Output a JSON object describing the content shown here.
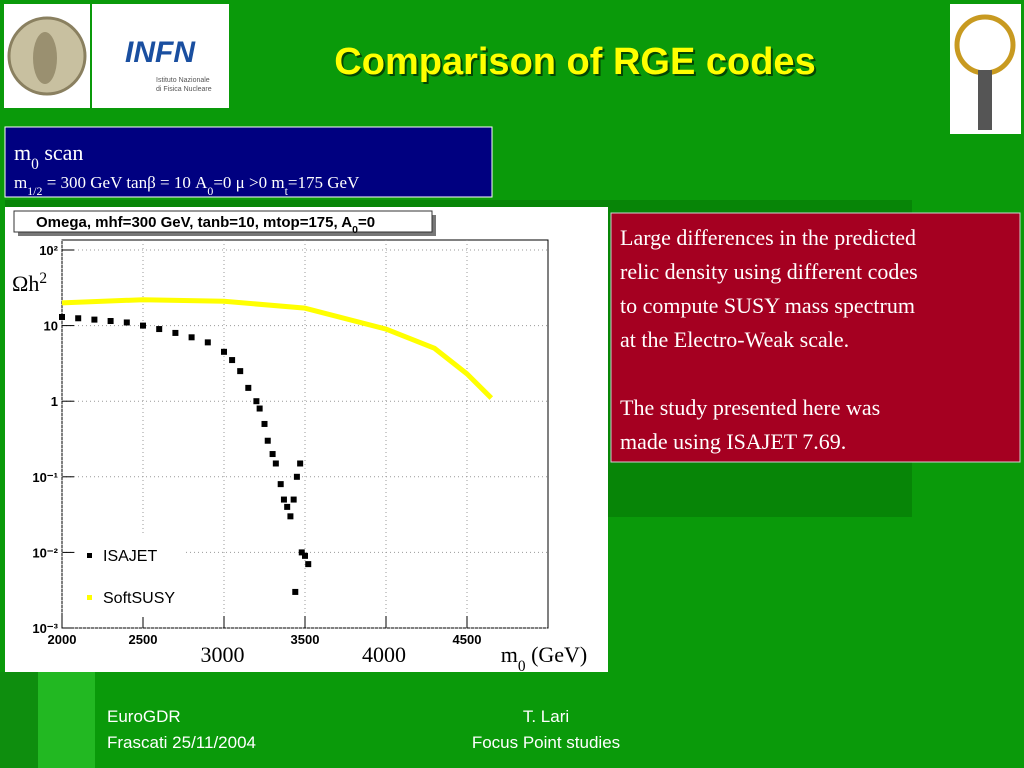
{
  "slide_title": "Comparison of RGE codes",
  "logos": {
    "infn": "INFN",
    "infn_sub": [
      "Istituto Nazionale",
      "di Fisica Nucleare"
    ]
  },
  "scan_box": {
    "heading": [
      "m",
      "0",
      " scan"
    ],
    "params": [
      "m",
      "1/2",
      " = 300 GeV tanβ = 10 A",
      "0",
      "=0 μ >0 m",
      "t",
      "=175 GeV"
    ]
  },
  "chart_data": {
    "type": "scatter",
    "title": [
      "Omega, mhf=300 GeV, tanb=10, mtop=175, A",
      "0",
      "=0"
    ],
    "y_label": [
      "Ωh",
      "2"
    ],
    "x_label": [
      "m",
      "0",
      " (GeV)"
    ],
    "x_label_overlays": [
      "3000",
      "4000"
    ],
    "xlim": [
      2000,
      5000
    ],
    "xticks": [
      2000,
      2500,
      3000,
      3500,
      4000,
      4500
    ],
    "ylim": [
      0.001,
      100
    ],
    "y_log": true,
    "yticks": [
      {
        "value": 100,
        "label": "10²"
      },
      10,
      1,
      {
        "value": 0.1,
        "label": "10⁻¹"
      },
      {
        "value": 0.01,
        "label": "10⁻²"
      },
      {
        "value": 0.001,
        "label": "10⁻³"
      }
    ],
    "grid": true,
    "series": [
      {
        "name": "ISAJET",
        "color": "#000000",
        "style": "markers",
        "x": [
          2000,
          2100,
          2200,
          2300,
          2400,
          2500,
          2600,
          2700,
          2800,
          2900,
          3000,
          3050,
          3100,
          3150,
          3200,
          3220,
          3250,
          3270,
          3300,
          3320,
          3350,
          3370,
          3390,
          3410,
          3430,
          3440,
          3450,
          3470,
          3480,
          3500,
          3520
        ],
        "values": [
          13,
          12.5,
          12,
          11.5,
          11,
          10,
          9,
          8,
          7,
          6,
          4.5,
          3.5,
          2.5,
          1.5,
          1,
          0.8,
          0.5,
          0.3,
          0.2,
          0.15,
          0.08,
          0.05,
          0.04,
          0.03,
          0.05,
          0.003,
          0.1,
          0.15,
          0.01,
          0.009,
          0.007
        ]
      },
      {
        "name": "SoftSUSY",
        "color": "#ffff00",
        "style": "line",
        "x": [
          2000,
          2500,
          3000,
          3500,
          4000,
          4300,
          4500,
          4650
        ],
        "values": [
          20,
          22,
          21,
          17,
          9,
          5,
          2.3,
          1.1
        ]
      }
    ]
  },
  "relic_text": [
    [
      "Large differences in the predicted",
      "relic density using different codes",
      "to compute SUSY mass spectrum",
      "at the Electro-Weak scale."
    ],
    [
      "The study presented here was",
      "made using ISAJET 7.69."
    ]
  ],
  "footer": {
    "left": [
      "EuroGDR",
      "Frascati 25/11/2004"
    ],
    "center": [
      "T. Lari",
      "Focus Point studies"
    ]
  }
}
